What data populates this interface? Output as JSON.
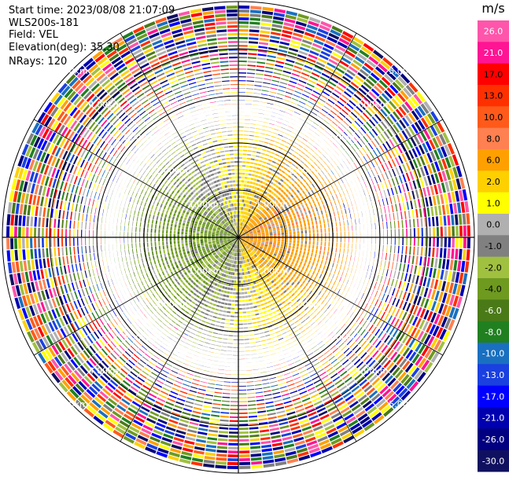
{
  "header": {
    "start_time": "Start time: 2023/08/08 21:07:09",
    "instrument": "WLS200s-181",
    "field": "Field: VEL",
    "elevation": "Elevation(deg): 35.30",
    "nrays": "NRays: 120"
  },
  "chart_data": {
    "type": "heatmap",
    "projection": "polar PPI",
    "field": "VEL",
    "n_rays": 120,
    "range_rings_km": [
      1.0,
      2.0,
      3.0,
      4.0,
      5.0
    ],
    "ring_labels": [
      "1.00km",
      "2.00km",
      "3.00km",
      "4.00km",
      "5.00km"
    ],
    "max_range_km": 5.0,
    "colorbar": {
      "unit": "m/s",
      "ticks": [
        "26.0",
        "21.0",
        "17.0",
        "13.0",
        "10.0",
        "8.0",
        "6.0",
        "2.0",
        "1.0",
        "0.0",
        "-1.0",
        "-2.0",
        "-4.0",
        "-6.0",
        "-8.0",
        "-10.0",
        "-13.0",
        "-17.0",
        "-21.0",
        "-26.0",
        "-30.0"
      ],
      "colors": [
        "#ff55aa",
        "#ff1493",
        "#ff0000",
        "#ff3000",
        "#ff5a1a",
        "#ff8050",
        "#ffa000",
        "#ffd000",
        "#ffff00",
        "#b0b0b0",
        "#808080",
        "#a0c040",
        "#6e9a20",
        "#4a7a18",
        "#208020",
        "#1a70c0",
        "#1a40e0",
        "#0000ff",
        "#0000b0",
        "#000080",
        "#101060"
      ]
    },
    "velocity_pattern": {
      "near_field_west_ms": -4.0,
      "near_field_east_ms": 6.0,
      "near_field_north_ms": 2.0,
      "far_field": "noise"
    }
  }
}
